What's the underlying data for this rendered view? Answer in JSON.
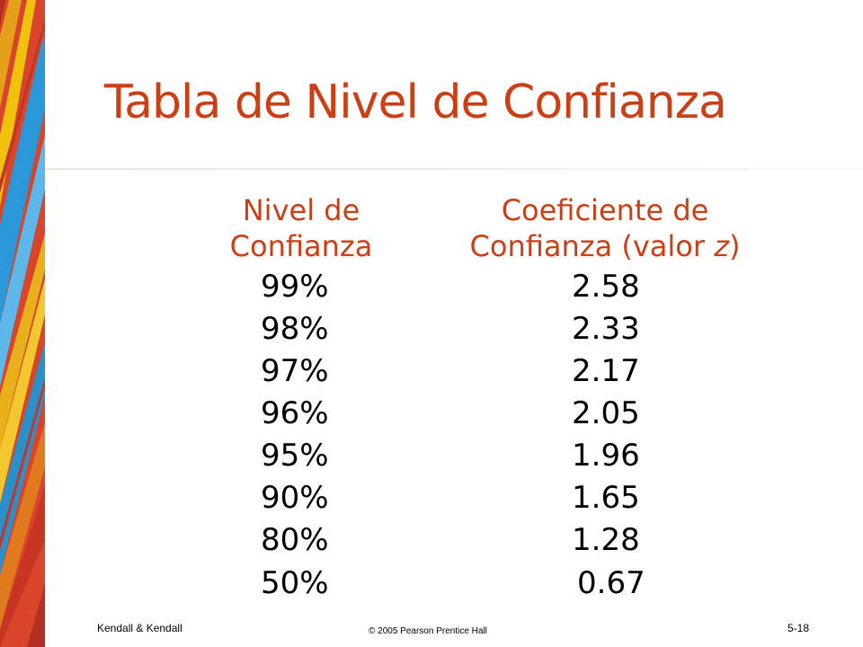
{
  "title": "Tabla de Nivel de Confianza",
  "table": {
    "head_level": [
      "Nivel de",
      "Confianza"
    ],
    "head_coef_line1": "Coeficiente de",
    "head_coef_line2_prefix": "Confianza (valor ",
    "head_coef_line2_var": "z",
    "head_coef_line2_suffix": ")",
    "rows": [
      {
        "level": "99%",
        "coef": "2.58"
      },
      {
        "level": "98%",
        "coef": "2.33"
      },
      {
        "level": "97%",
        "coef": "2.17"
      },
      {
        "level": "96%",
        "coef": "2.05"
      },
      {
        "level": "95%",
        "coef": "1.96"
      },
      {
        "level": "90%",
        "coef": "1.65"
      },
      {
        "level": "80%",
        "coef": "1.28"
      },
      {
        "level": "50%",
        "coef": "0.67"
      }
    ]
  },
  "footer": {
    "left": "Kendall & Kendall",
    "center": "© 2005 Pearson Prentice Hall",
    "right": "5-18"
  },
  "colors": {
    "accent": "#cc3e14",
    "text": "#000000",
    "background": "#ffffff"
  }
}
